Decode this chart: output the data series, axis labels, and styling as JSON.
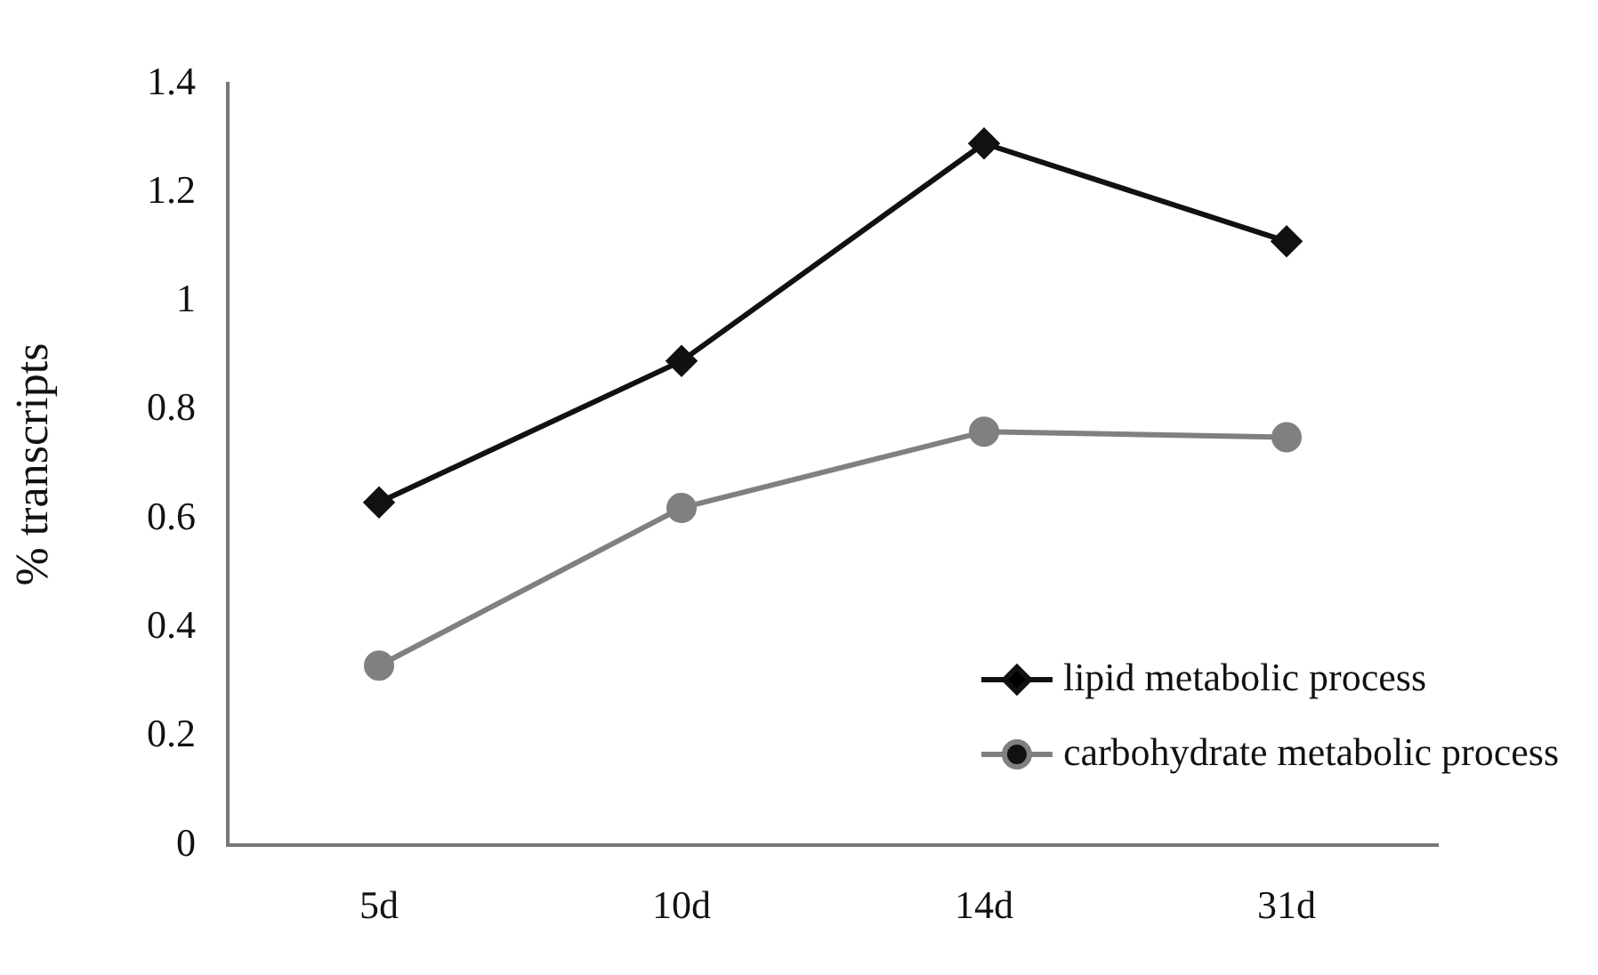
{
  "chart_data": {
    "type": "line",
    "ylabel": "% transcripts",
    "categories": [
      "5d",
      "10d",
      "14d",
      "31d"
    ],
    "series": [
      {
        "name": "lipid metabolic process",
        "color": "#111111",
        "marker": "diamond",
        "values": [
          0.63,
          0.89,
          1.29,
          1.11
        ]
      },
      {
        "name": "carbohydrate metabolic process",
        "color": "#808080",
        "marker": "circle",
        "values": [
          0.33,
          0.62,
          0.76,
          0.75
        ]
      }
    ],
    "ylim": [
      0,
      1.4
    ],
    "yticks": [
      0,
      0.2,
      0.4,
      0.6,
      0.8,
      1,
      1.2,
      1.4
    ],
    "grid": false,
    "legend": "bottom right",
    "line_style": "solid"
  }
}
